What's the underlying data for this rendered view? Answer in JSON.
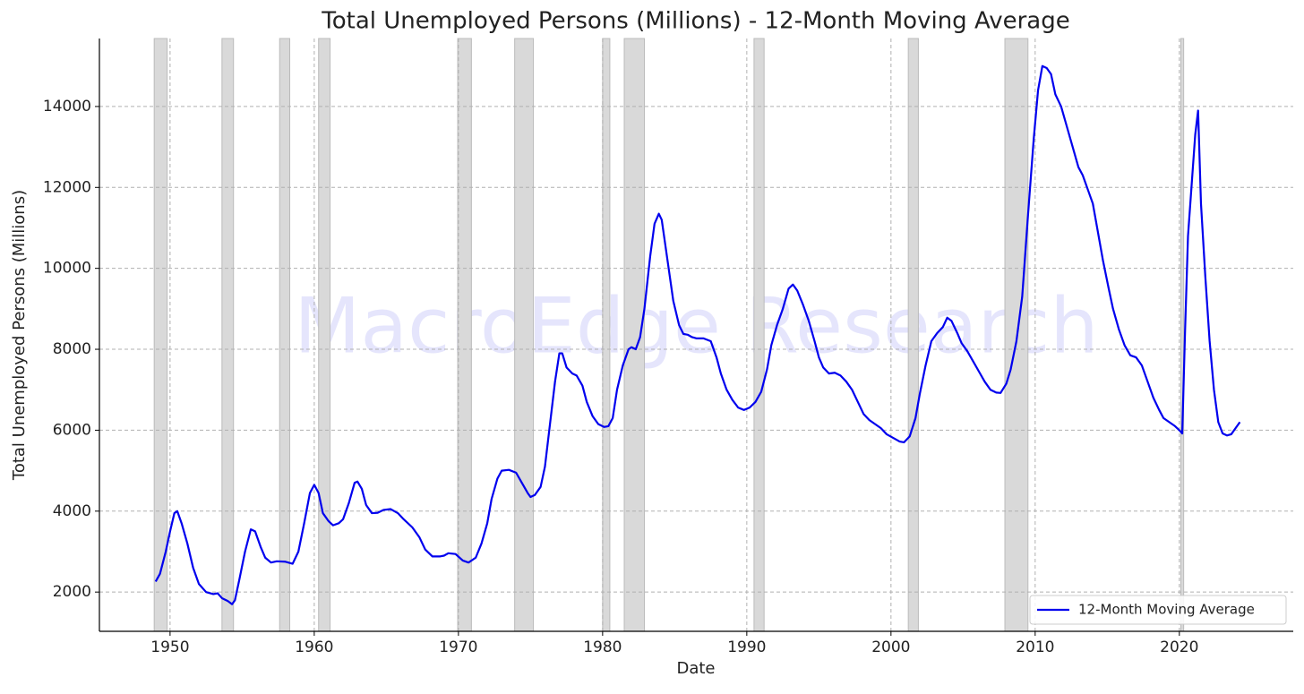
{
  "chart_data": {
    "type": "line",
    "title": "Total Unemployed Persons (Millions) - 12-Month Moving Average",
    "xlabel": "Date",
    "ylabel": "Total Unemployed Persons (Millions)",
    "watermark": "MacroEdge Research",
    "xlim": [
      1945.1,
      2027.9
    ],
    "xticks": [
      1950,
      1960,
      1970,
      1980,
      1990,
      2000,
      2010,
      2020
    ],
    "ylim": [
      1030,
      15680
    ],
    "yticks": [
      2000,
      4000,
      6000,
      8000,
      10000,
      12000,
      14000
    ],
    "grid": true,
    "legend": "lower right",
    "recessions": [
      [
        1948.9,
        1949.8
      ],
      [
        1953.6,
        1954.4
      ],
      [
        1957.6,
        1958.3
      ],
      [
        1960.3,
        1961.1
      ],
      [
        1969.95,
        1970.9
      ],
      [
        1973.9,
        1975.2
      ],
      [
        1980.0,
        1980.5
      ],
      [
        1981.5,
        1982.9
      ],
      [
        1990.5,
        1991.2
      ],
      [
        2001.2,
        2001.9
      ],
      [
        2007.9,
        2009.5
      ],
      [
        2020.1,
        2020.3
      ]
    ],
    "recession_color": "#d9d9d9",
    "series": [
      {
        "name": "12-Month Moving Average",
        "color": "#0000ee",
        "x": [
          1949.0,
          1949.3,
          1949.7,
          1950.0,
          1950.3,
          1950.5,
          1950.8,
          1951.2,
          1951.6,
          1952.0,
          1952.5,
          1953.0,
          1953.3,
          1953.6,
          1954.0,
          1954.3,
          1954.5,
          1954.8,
          1955.2,
          1955.6,
          1955.9,
          1956.3,
          1956.6,
          1957.0,
          1957.4,
          1958.0,
          1958.5,
          1958.9,
          1959.3,
          1959.7,
          1960.0,
          1960.3,
          1960.6,
          1961.0,
          1961.3,
          1961.7,
          1962.0,
          1962.4,
          1962.8,
          1963.0,
          1963.3,
          1963.6,
          1964.0,
          1964.4,
          1964.8,
          1965.3,
          1965.8,
          1966.2,
          1966.8,
          1967.3,
          1967.7,
          1968.2,
          1968.7,
          1969.0,
          1969.3,
          1969.8,
          1970.3,
          1970.7,
          1971.2,
          1971.6,
          1972.0,
          1972.3,
          1972.7,
          1973.0,
          1973.5,
          1974.0,
          1974.4,
          1974.8,
          1975.0,
          1975.3,
          1975.7,
          1976.0,
          1976.3,
          1976.7,
          1977.0,
          1977.2,
          1977.5,
          1977.9,
          1978.2,
          1978.6,
          1978.9,
          1979.3,
          1979.7,
          1980.1,
          1980.4,
          1980.7,
          1981.0,
          1981.4,
          1981.8,
          1982.0,
          1982.3,
          1982.6,
          1982.9,
          1983.3,
          1983.6,
          1983.9,
          1984.1,
          1984.5,
          1984.9,
          1985.3,
          1985.6,
          1985.9,
          1986.2,
          1986.5,
          1987.0,
          1987.5,
          1987.9,
          1988.2,
          1988.6,
          1989.0,
          1989.4,
          1989.8,
          1990.2,
          1990.6,
          1991.0,
          1991.4,
          1991.7,
          1992.1,
          1992.5,
          1992.9,
          1993.2,
          1993.5,
          1993.9,
          1994.3,
          1994.7,
          1995.0,
          1995.3,
          1995.7,
          1996.1,
          1996.5,
          1996.9,
          1997.3,
          1997.7,
          1998.1,
          1998.5,
          1998.9,
          1999.3,
          1999.7,
          2000.2,
          2000.6,
          2000.9,
          2001.3,
          2001.7,
          2002.0,
          2002.4,
          2002.8,
          2003.2,
          2003.6,
          2003.9,
          2004.2,
          2004.6,
          2004.9,
          2005.3,
          2005.7,
          2006.1,
          2006.5,
          2006.9,
          2007.3,
          2007.6,
          2008.0,
          2008.3,
          2008.7,
          2009.1,
          2009.5,
          2009.9,
          2010.2,
          2010.5,
          2010.8,
          2011.1,
          2011.4,
          2011.8,
          2012.2,
          2012.6,
          2013.0,
          2013.3,
          2013.7,
          2014.0,
          2014.3,
          2014.7,
          2015.1,
          2015.4,
          2015.8,
          2016.2,
          2016.6,
          2017.0,
          2017.4,
          2017.8,
          2018.2,
          2018.6,
          2018.9,
          2019.3,
          2019.7,
          2020.0,
          2020.2,
          2020.4,
          2020.6,
          2020.9,
          2021.1,
          2021.3,
          2021.5,
          2021.8,
          2022.1,
          2022.4,
          2022.7,
          2023.0,
          2023.3,
          2023.6,
          2023.9,
          2024.2
        ],
        "values": [
          2260,
          2450,
          3000,
          3500,
          3950,
          4000,
          3700,
          3200,
          2600,
          2200,
          2000,
          1950,
          1970,
          1850,
          1780,
          1700,
          1800,
          2300,
          3000,
          3550,
          3500,
          3100,
          2850,
          2730,
          2760,
          2750,
          2700,
          3000,
          3700,
          4450,
          4650,
          4450,
          3950,
          3750,
          3650,
          3700,
          3800,
          4200,
          4700,
          4730,
          4550,
          4150,
          3950,
          3960,
          4030,
          4050,
          3950,
          3800,
          3600,
          3350,
          3050,
          2880,
          2880,
          2900,
          2960,
          2940,
          2780,
          2730,
          2850,
          3200,
          3700,
          4300,
          4800,
          5000,
          5020,
          4950,
          4700,
          4450,
          4350,
          4400,
          4600,
          5100,
          6000,
          7200,
          7900,
          7900,
          7550,
          7400,
          7350,
          7100,
          6700,
          6350,
          6150,
          6080,
          6100,
          6300,
          7000,
          7600,
          8000,
          8050,
          8000,
          8300,
          9000,
          10300,
          11100,
          11350,
          11200,
          10200,
          9200,
          8600,
          8380,
          8360,
          8300,
          8270,
          8270,
          8200,
          7800,
          7400,
          7000,
          6750,
          6560,
          6500,
          6560,
          6700,
          6950,
          7500,
          8100,
          8600,
          9000,
          9500,
          9600,
          9450,
          9100,
          8700,
          8200,
          7800,
          7550,
          7400,
          7420,
          7350,
          7200,
          7000,
          6700,
          6400,
          6250,
          6150,
          6050,
          5900,
          5800,
          5720,
          5700,
          5850,
          6300,
          6900,
          7600,
          8200,
          8400,
          8550,
          8780,
          8700,
          8400,
          8150,
          7950,
          7700,
          7450,
          7200,
          7000,
          6930,
          6920,
          7150,
          7500,
          8200,
          9300,
          11300,
          13200,
          14400,
          15000,
          14950,
          14800,
          14300,
          14000,
          13500,
          13000,
          12500,
          12300,
          11900,
          11600,
          11000,
          10200,
          9500,
          9000,
          8500,
          8100,
          7850,
          7800,
          7600,
          7200,
          6800,
          6500,
          6300,
          6200,
          6100,
          6000,
          5920,
          8500,
          10800,
          12300,
          13300,
          13900,
          11600,
          9800,
          8200,
          7000,
          6200,
          5920,
          5870,
          5900,
          6050,
          6200
        ]
      }
    ]
  }
}
